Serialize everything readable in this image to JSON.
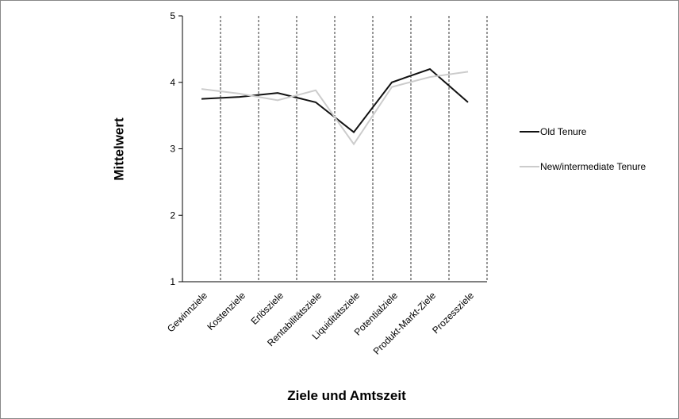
{
  "chart_data": {
    "type": "line",
    "x_label": "Ziele und Amtszeit",
    "y_label": "Mittelwert",
    "categories": [
      "Gewinnziele",
      "Kostenziele",
      "Erlösziele",
      "Rentabilitätsziele",
      "Liquiditätsziele",
      "Potentialziele",
      "Produkt-Markt-Ziele",
      "Prozessziele"
    ],
    "series": [
      {
        "name": "Old Tenure",
        "color": "#111111",
        "values": [
          3.75,
          3.78,
          3.84,
          3.7,
          3.25,
          4.0,
          4.2,
          3.7
        ]
      },
      {
        "name": "New/intermediate Tenure",
        "color": "#cccccc",
        "values": [
          3.9,
          3.83,
          3.73,
          3.88,
          3.07,
          3.93,
          4.08,
          4.16
        ]
      }
    ],
    "ylim": [
      1,
      5
    ],
    "yticks": [
      1,
      2,
      3,
      4,
      5
    ]
  }
}
